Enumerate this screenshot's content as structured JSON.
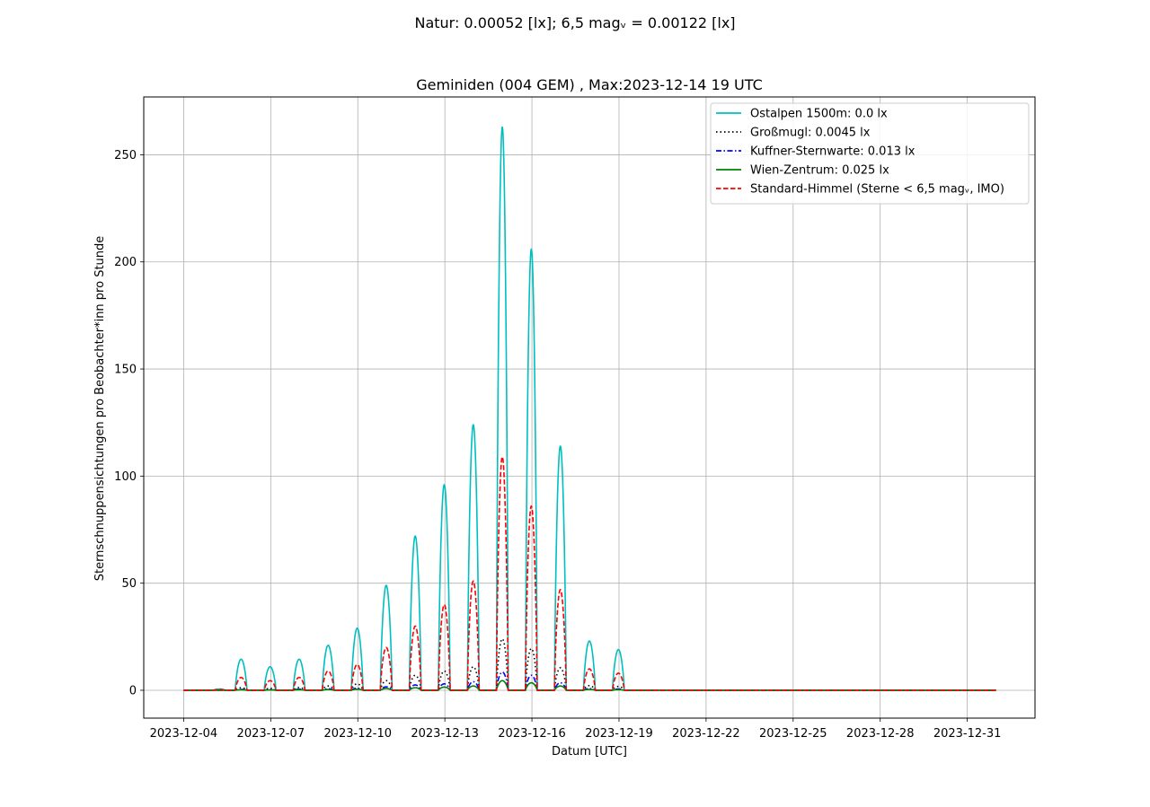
{
  "figure": {
    "suptitle": "Natur: 0.00052 [lx]; 6,5 magᵥ = 0.00122 [lx]"
  },
  "chart_data": {
    "type": "line",
    "title": "Geminiden (004 GEM) , Max:2023-12-14 19 UTC",
    "xlabel": "Datum [UTC]",
    "ylabel": "Sternschnuppensichtungen pro Beobachter*inn pro Stunde",
    "xlim": [
      "2023-12-02T15:00",
      "2024-01-02T08:00"
    ],
    "ylim": [
      -13,
      277
    ],
    "xticks": [
      "2023-12-04",
      "2023-12-07",
      "2023-12-10",
      "2023-12-13",
      "2023-12-16",
      "2023-12-19",
      "2023-12-22",
      "2023-12-25",
      "2023-12-28",
      "2023-12-31"
    ],
    "yticks": [
      0,
      50,
      100,
      150,
      200,
      250
    ],
    "grid": true,
    "legend_position": "top-right",
    "x_start": "2023-12-04T00:00",
    "x_end": "2024-01-01T00:00",
    "night_peaks": [
      {
        "center": "2023-12-05T05:30",
        "values": [
          0.6,
          0.06,
          0.02,
          0.01,
          0.4
        ]
      },
      {
        "center": "2023-12-05T23:30",
        "values": [
          14.5,
          1.2,
          0.4,
          0.2,
          6.0
        ]
      },
      {
        "center": "2023-12-06T23:30",
        "values": [
          11.0,
          0.9,
          0.3,
          0.15,
          4.5
        ]
      },
      {
        "center": "2023-12-07T23:30",
        "values": [
          14.5,
          1.3,
          0.5,
          0.25,
          6.0
        ]
      },
      {
        "center": "2023-12-08T23:30",
        "values": [
          21.0,
          2.0,
          0.7,
          0.35,
          9.0
        ]
      },
      {
        "center": "2023-12-09T23:30",
        "values": [
          29.0,
          3.0,
          1.0,
          0.5,
          12.0
        ]
      },
      {
        "center": "2023-12-10T23:30",
        "values": [
          49.0,
          4.5,
          1.6,
          0.8,
          20.0
        ]
      },
      {
        "center": "2023-12-11T23:30",
        "values": [
          72.0,
          7.0,
          2.5,
          1.2,
          30.0
        ]
      },
      {
        "center": "2023-12-12T23:30",
        "values": [
          96.0,
          9.0,
          3.0,
          1.5,
          40.0
        ]
      },
      {
        "center": "2023-12-13T23:30",
        "values": [
          124.0,
          11.0,
          4.0,
          2.0,
          51.0
        ]
      },
      {
        "center": "2023-12-14T23:30",
        "values": [
          263.0,
          24.0,
          8.5,
          4.5,
          109.0
        ]
      },
      {
        "center": "2023-12-15T23:30",
        "values": [
          206.0,
          19.5,
          7.0,
          3.5,
          86.0
        ]
      },
      {
        "center": "2023-12-16T23:30",
        "values": [
          114.0,
          10.5,
          3.5,
          2.0,
          47.0
        ]
      },
      {
        "center": "2023-12-17T23:30",
        "values": [
          23.0,
          2.2,
          0.8,
          0.4,
          10.0
        ]
      },
      {
        "center": "2023-12-18T23:30",
        "values": [
          19.0,
          1.8,
          0.6,
          0.3,
          8.0
        ]
      }
    ],
    "series": [
      {
        "name": "Ostalpen 1500m: 0.0 lx",
        "color": "#00bfbf",
        "dash": "solid"
      },
      {
        "name": "Großmugl: 0.0045 lx",
        "color": "#000000",
        "dash": "dotted"
      },
      {
        "name": "Kuffner-Sternwarte: 0.013 lx",
        "color": "#0000ff",
        "dash": "dashdot"
      },
      {
        "name": "Wien-Zentrum: 0.025 lx",
        "color": "#008000",
        "dash": "solid"
      },
      {
        "name": "Standard-Himmel (Sterne  < 6,5 magᵥ, IMO)",
        "color": "#ff0000",
        "dash": "dashed"
      }
    ]
  }
}
